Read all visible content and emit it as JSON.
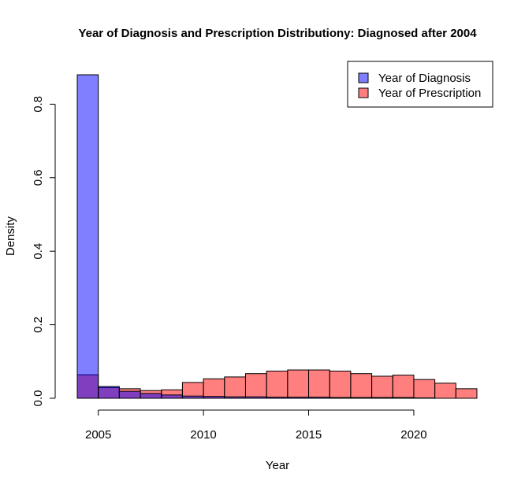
{
  "chart_data": {
    "type": "bar",
    "title": "Year of Diagnosis and Prescription Distributiony: Diagnosed after 2004",
    "xlabel": "Year",
    "ylabel": "Density",
    "xlim": [
      2004,
      2023
    ],
    "ylim": [
      0,
      0.88
    ],
    "x_ticks": [
      2005,
      2010,
      2015,
      2020
    ],
    "y_ticks": [
      0.0,
      0.2,
      0.4,
      0.6,
      0.8
    ],
    "legend_position": "top-right",
    "grid": false,
    "bin_width": 1,
    "series": [
      {
        "name": "Year of Prescription",
        "color": "#ff0000",
        "opacity": 0.5,
        "bins": [
          {
            "start": 2004,
            "value": 0.064
          },
          {
            "start": 2005,
            "value": 0.029
          },
          {
            "start": 2006,
            "value": 0.026
          },
          {
            "start": 2007,
            "value": 0.021
          },
          {
            "start": 2008,
            "value": 0.023
          },
          {
            "start": 2009,
            "value": 0.043
          },
          {
            "start": 2010,
            "value": 0.053
          },
          {
            "start": 2011,
            "value": 0.058
          },
          {
            "start": 2012,
            "value": 0.067
          },
          {
            "start": 2013,
            "value": 0.074
          },
          {
            "start": 2014,
            "value": 0.077
          },
          {
            "start": 2015,
            "value": 0.077
          },
          {
            "start": 2016,
            "value": 0.074
          },
          {
            "start": 2017,
            "value": 0.067
          },
          {
            "start": 2018,
            "value": 0.06
          },
          {
            "start": 2019,
            "value": 0.063
          },
          {
            "start": 2020,
            "value": 0.051
          },
          {
            "start": 2021,
            "value": 0.041
          },
          {
            "start": 2022,
            "value": 0.026
          }
        ]
      },
      {
        "name": "Year of Diagnosis",
        "color": "#0000ff",
        "opacity": 0.5,
        "bins": [
          {
            "start": 2004,
            "value": 0.88
          },
          {
            "start": 2005,
            "value": 0.032
          },
          {
            "start": 2006,
            "value": 0.019
          },
          {
            "start": 2007,
            "value": 0.013
          },
          {
            "start": 2008,
            "value": 0.009
          },
          {
            "start": 2009,
            "value": 0.006
          },
          {
            "start": 2010,
            "value": 0.005
          },
          {
            "start": 2011,
            "value": 0.004
          },
          {
            "start": 2012,
            "value": 0.004
          },
          {
            "start": 2013,
            "value": 0.003
          },
          {
            "start": 2014,
            "value": 0.003
          },
          {
            "start": 2015,
            "value": 0.003
          },
          {
            "start": 2016,
            "value": 0.002
          },
          {
            "start": 2017,
            "value": 0.002
          },
          {
            "start": 2018,
            "value": 0.002
          },
          {
            "start": 2019,
            "value": 0.002
          },
          {
            "start": 2020,
            "value": 0.001
          }
        ]
      }
    ],
    "legend": [
      {
        "label": "Year of Diagnosis",
        "color": "#0000ff"
      },
      {
        "label": "Year of Prescription",
        "color": "#ff0000"
      }
    ]
  }
}
